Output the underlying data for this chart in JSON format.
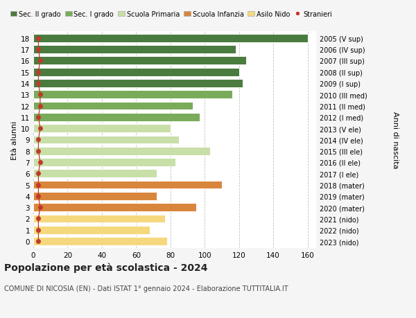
{
  "ages": [
    18,
    17,
    16,
    15,
    14,
    13,
    12,
    11,
    10,
    9,
    8,
    7,
    6,
    5,
    4,
    3,
    2,
    1,
    0
  ],
  "values": [
    160,
    118,
    124,
    120,
    122,
    116,
    93,
    97,
    80,
    85,
    103,
    83,
    72,
    110,
    72,
    95,
    77,
    68,
    78
  ],
  "right_labels": [
    "2005 (V sup)",
    "2006 (IV sup)",
    "2007 (III sup)",
    "2008 (II sup)",
    "2009 (I sup)",
    "2010 (III med)",
    "2011 (II med)",
    "2012 (I med)",
    "2013 (V ele)",
    "2014 (IV ele)",
    "2015 (III ele)",
    "2016 (II ele)",
    "2017 (I ele)",
    "2018 (mater)",
    "2019 (mater)",
    "2020 (mater)",
    "2021 (nido)",
    "2022 (nido)",
    "2023 (nido)"
  ],
  "colors": [
    "#4a7c3f",
    "#4a7c3f",
    "#4a7c3f",
    "#4a7c3f",
    "#4a7c3f",
    "#7aab5a",
    "#7aab5a",
    "#7aab5a",
    "#c8dfa8",
    "#c8dfa8",
    "#c8dfa8",
    "#c8dfa8",
    "#c8dfa8",
    "#d9863d",
    "#d9863d",
    "#d9863d",
    "#f5d87e",
    "#f5d87e",
    "#f5d87e"
  ],
  "stranieri_values": [
    3,
    3,
    4,
    3,
    3,
    4,
    4,
    3,
    4,
    3,
    3,
    4,
    3,
    3,
    3,
    4,
    3,
    3,
    3
  ],
  "legend_labels": [
    "Sec. II grado",
    "Sec. I grado",
    "Scuola Primaria",
    "Scuola Infanzia",
    "Asilo Nido",
    "Stranieri"
  ],
  "legend_colors": [
    "#4a7c3f",
    "#7aab5a",
    "#c8dfa8",
    "#d9863d",
    "#f5d87e",
    "#c0392b"
  ],
  "title": "Popolazione per età scolastica - 2024",
  "subtitle": "COMUNE DI NICOSIA (EN) - Dati ISTAT 1° gennaio 2024 - Elaborazione TUTTITALIA.IT",
  "ylabel_left": "Età alunni",
  "ylabel_right": "Anni di nascita",
  "xlim": [
    0,
    165
  ],
  "background_color": "#f5f5f5",
  "plot_bg_color": "#ffffff"
}
